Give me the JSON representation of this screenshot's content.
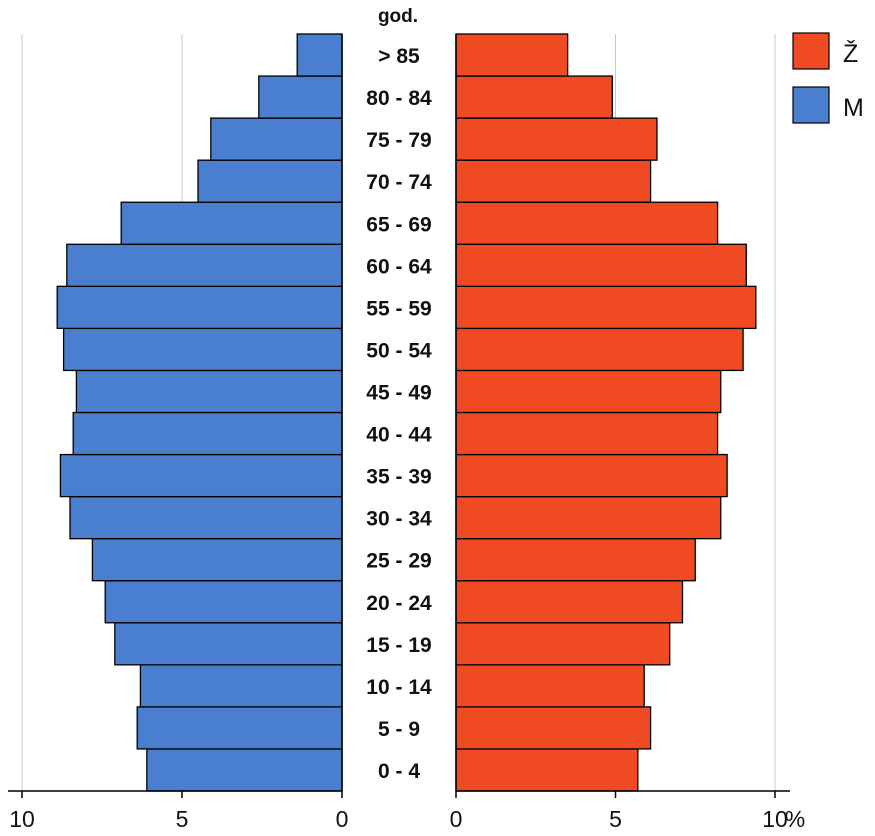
{
  "chart_data": {
    "type": "bar",
    "orientation": "horizontal-pyramid",
    "unit_label": "god.",
    "pct_label": "%",
    "categories": [
      "0 - 4",
      "5 - 9",
      "10 - 14",
      "15 - 19",
      "20 - 24",
      "25 - 29",
      "30 - 34",
      "35 - 39",
      "40 - 44",
      "45 - 49",
      "50 - 54",
      "55 - 59",
      "60 - 64",
      "65 - 69",
      "70 - 74",
      "75 - 79",
      "80 - 84",
      "> 85"
    ],
    "series": [
      {
        "name": "M",
        "side": "left",
        "color": "#4a7fd0",
        "values": [
          6.1,
          6.4,
          6.3,
          7.1,
          7.4,
          7.8,
          8.5,
          8.8,
          8.4,
          8.3,
          8.7,
          8.9,
          8.6,
          6.9,
          4.5,
          4.1,
          2.6,
          1.4
        ]
      },
      {
        "name": "Ž",
        "side": "right",
        "color": "#f04a22",
        "values": [
          5.7,
          6.1,
          5.9,
          6.7,
          7.1,
          7.5,
          8.3,
          8.5,
          8.2,
          8.3,
          9.0,
          9.4,
          9.1,
          8.2,
          6.1,
          6.3,
          4.9,
          3.5
        ]
      }
    ],
    "left_axis": {
      "ticks": [
        10,
        5,
        0
      ],
      "xlim": [
        0,
        10
      ],
      "reversed": true
    },
    "right_axis": {
      "ticks": [
        0,
        5,
        10
      ],
      "xlim": [
        0,
        10
      ]
    },
    "grid": true,
    "legend_position": "top-right",
    "legend": [
      {
        "label": "Ž",
        "color": "#f04a22"
      },
      {
        "label": "M",
        "color": "#4a7fd0"
      }
    ]
  }
}
